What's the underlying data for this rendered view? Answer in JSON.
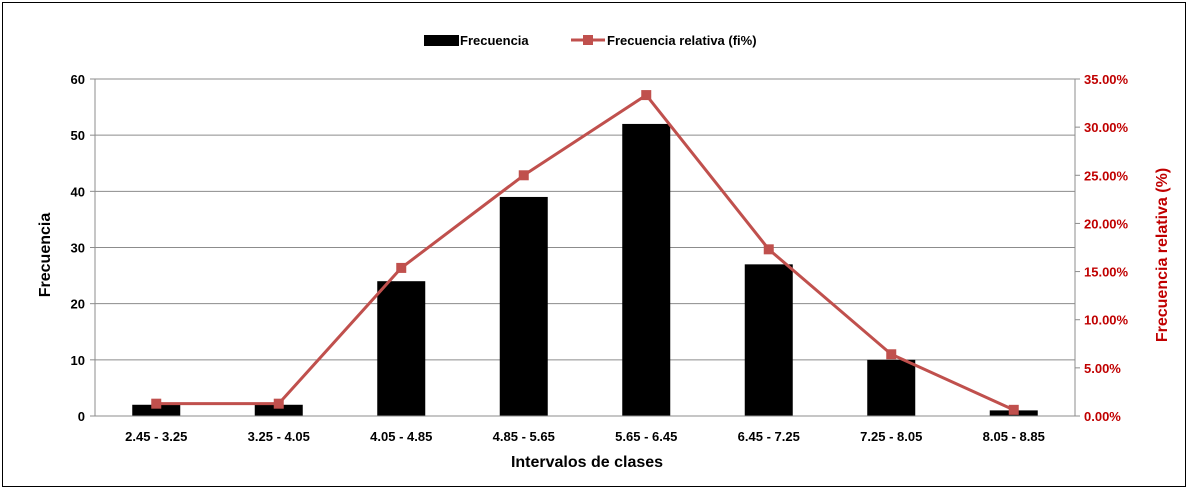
{
  "chart_data": {
    "type": "bar",
    "categories": [
      "2.45 - 3.25",
      "3.25 - 4.05",
      "4.05 - 4.85",
      "4.85 - 5.65",
      "5.65 - 6.45",
      "6.45 - 7.25",
      "7.25 - 8.05",
      "8.05 - 8.85"
    ],
    "series": [
      {
        "name": "Frecuencia",
        "type": "bar",
        "axis": "left",
        "color": "#000000",
        "values": [
          2,
          2,
          24,
          39,
          52,
          27,
          10,
          1
        ]
      },
      {
        "name": "Frecuencia relativa (fi%)",
        "type": "line",
        "axis": "right",
        "color": "#c0504d",
        "values": [
          1.28,
          1.28,
          15.38,
          25.0,
          33.33,
          17.31,
          6.41,
          0.64
        ]
      }
    ],
    "title": "",
    "xlabel": "Intervalos de clases",
    "ylabel": "Frecuencia",
    "y2label": "Frecuencia relativa (%)",
    "ylim": [
      0,
      60
    ],
    "yticks": [
      "0",
      "10",
      "20",
      "30",
      "40",
      "50",
      "60"
    ],
    "y2lim": [
      0,
      35
    ],
    "y2ticks": [
      "0.00%",
      "5.00%",
      "10.00%",
      "15.00%",
      "20.00%",
      "25.00%",
      "30.00%",
      "35.00%"
    ],
    "grid": true,
    "legend": "top-center",
    "colors": {
      "axis_right": "#c00000",
      "line": "#c0504d",
      "bar": "#000000",
      "grid": "#8c8c8c"
    }
  }
}
